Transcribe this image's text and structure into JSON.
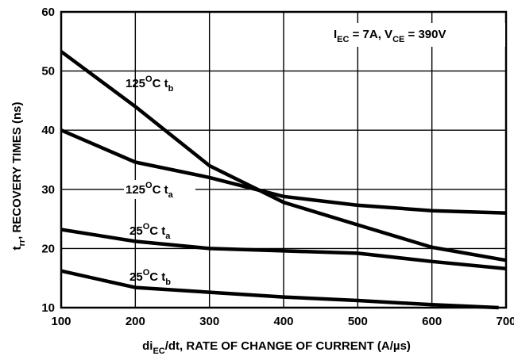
{
  "chart_data": {
    "type": "line",
    "annotation": {
      "i_main": "I",
      "i_sub": "EC",
      "i_rest": " = 7A, V",
      "v_sub": "CE",
      "v_rest": " = 390V"
    },
    "xlabel": {
      "main1": "di",
      "sub": "EC",
      "main2": "/dt, RATE OF CHANGE OF CURRENT (A/µs)"
    },
    "ylabel": {
      "main1": "t",
      "sub": "rr",
      "main2": ", RECOVERY TIMES (ns)"
    },
    "xlim": [
      100,
      700
    ],
    "ylim": [
      10,
      60
    ],
    "x_ticks": [
      "100",
      "200",
      "300",
      "400",
      "500",
      "600",
      "700"
    ],
    "y_ticks": [
      "10",
      "20",
      "30",
      "40",
      "50",
      "60"
    ],
    "grid": true,
    "series": [
      {
        "name": "125°C tb",
        "label_main": "125",
        "label_sup": "O",
        "label_c": "C t",
        "label_sub": "b",
        "x": [
          100,
          200,
          300,
          400,
          500,
          600,
          700
        ],
        "y": [
          53.3,
          44.0,
          34.0,
          27.8,
          24.0,
          20.2,
          18.0
        ]
      },
      {
        "name": "125°C ta",
        "label_main": "125",
        "label_sup": "O",
        "label_c": "C t",
        "label_sub": "a",
        "x": [
          100,
          200,
          300,
          400,
          500,
          600,
          700
        ],
        "y": [
          40.0,
          34.6,
          32.0,
          28.8,
          27.3,
          26.4,
          26.0
        ]
      },
      {
        "name": "25°C ta",
        "label_main": "25",
        "label_sup": "O",
        "label_c": "C t",
        "label_sub": "a",
        "x": [
          100,
          200,
          300,
          400,
          500,
          600,
          700
        ],
        "y": [
          23.2,
          21.2,
          20.0,
          19.6,
          19.2,
          17.8,
          16.6
        ]
      },
      {
        "name": "25°C tb",
        "label_main": "25",
        "label_sup": "O",
        "label_c": "C t",
        "label_sub": "b",
        "x": [
          100,
          200,
          300,
          400,
          500,
          600,
          690
        ],
        "y": [
          16.2,
          13.4,
          12.6,
          11.8,
          11.2,
          10.5,
          10.0
        ]
      }
    ]
  }
}
